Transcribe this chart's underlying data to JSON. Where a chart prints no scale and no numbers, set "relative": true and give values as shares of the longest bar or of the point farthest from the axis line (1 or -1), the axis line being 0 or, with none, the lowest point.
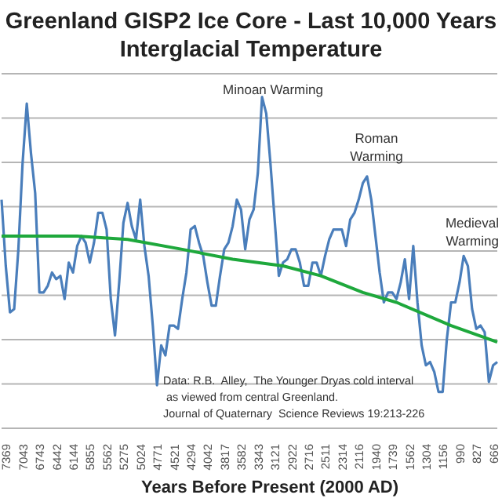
{
  "chart_data": {
    "type": "line",
    "title": "Greenland GISP2 Ice Core - Last 10,000 Years\nInterglacial Temperature",
    "xlabel": "Years Before Present (2000 AD)",
    "relative": true,
    "grid": "y",
    "annotations": [
      "Minoan Warming",
      "Roman\nWarming",
      "Medieval\nWarming",
      "Data: R.B.  Alley,  The Younger Dryas cold interval\n as viewed from central Greenland.\nJournal of Quaternary  Science Reviews 19:213-226"
    ],
    "categories": [
      null,
      "7369",
      null,
      null,
      null,
      "7043",
      null,
      null,
      null,
      "6743",
      null,
      null,
      null,
      "6442",
      null,
      null,
      null,
      "6144",
      null,
      null,
      null,
      "5855",
      null,
      null,
      null,
      "5562",
      null,
      null,
      null,
      "5275",
      null,
      null,
      null,
      "5024",
      null,
      null,
      null,
      "4771",
      null,
      null,
      null,
      "4521",
      null,
      null,
      null,
      "4294",
      null,
      null,
      null,
      "4042",
      null,
      null,
      null,
      "3817",
      null,
      null,
      null,
      "3582",
      null,
      null,
      null,
      "3343",
      null,
      null,
      null,
      "3121",
      null,
      null,
      null,
      "2922",
      null,
      null,
      null,
      "2716",
      null,
      null,
      null,
      "2511",
      null,
      null,
      null,
      "2314",
      null,
      null,
      null,
      "2116",
      null,
      null,
      null,
      "1940",
      null,
      null,
      null,
      "1739",
      null,
      null,
      null,
      "1562",
      null,
      null,
      null,
      "1304",
      null,
      null,
      null,
      "1156",
      null,
      null,
      null,
      "990",
      null,
      null,
      null,
      "827",
      null,
      null,
      null,
      "666",
      null
    ],
    "series": [
      {
        "color": "#4a7ebb",
        "values": [
          0.69,
          0.49,
          0.35,
          0.36,
          0.54,
          0.8,
          0.98,
          0.83,
          0.71,
          0.41,
          0.41,
          0.43,
          0.47,
          0.45,
          0.46,
          0.39,
          0.5,
          0.47,
          0.55,
          0.58,
          0.56,
          0.5,
          0.56,
          0.65,
          0.65,
          0.6,
          0.39,
          0.28,
          0.44,
          0.62,
          0.68,
          0.61,
          0.57,
          0.69,
          0.55,
          0.46,
          0.31,
          0.13,
          0.25,
          0.22,
          0.31,
          0.31,
          0.3,
          0.39,
          0.47,
          0.6,
          0.61,
          0.56,
          0.52,
          0.44,
          0.37,
          0.37,
          0.46,
          0.54,
          0.56,
          0.61,
          0.69,
          0.66,
          0.54,
          0.63,
          0.66,
          0.77,
          1.0,
          0.95,
          0.8,
          0.63,
          0.46,
          0.5,
          0.51,
          0.54,
          0.54,
          0.5,
          0.43,
          0.43,
          0.5,
          0.5,
          0.46,
          0.52,
          0.57,
          0.6,
          0.6,
          0.6,
          0.55,
          0.63,
          0.65,
          0.69,
          0.74,
          0.76,
          0.69,
          0.58,
          0.47,
          0.38,
          0.41,
          0.41,
          0.39,
          0.44,
          0.51,
          0.39,
          0.55,
          0.38,
          0.25,
          0.19,
          0.2,
          0.17,
          0.11,
          0.11,
          0.27,
          0.38,
          0.38,
          0.44,
          0.52,
          0.49,
          0.36,
          0.3,
          0.31,
          0.29,
          0.14,
          0.19,
          0.2
        ]
      },
      {
        "color": "#1ea83c",
        "values": [
          0.58,
          null,
          null,
          null,
          null,
          null,
          null,
          null,
          null,
          null,
          null,
          null,
          null,
          null,
          null,
          null,
          null,
          null,
          0.58,
          null,
          null,
          null,
          null,
          null,
          null,
          null,
          null,
          null,
          null,
          null,
          0.57,
          null,
          null,
          null,
          null,
          null,
          null,
          null,
          null,
          null,
          null,
          null,
          null,
          0.54,
          null,
          null,
          null,
          null,
          null,
          null,
          null,
          null,
          null,
          null,
          null,
          0.51,
          null,
          null,
          null,
          null,
          null,
          null,
          null,
          null,
          null,
          null,
          null,
          0.49,
          null,
          null,
          null,
          null,
          null,
          null,
          null,
          null,
          0.46,
          null,
          null,
          null,
          null,
          null,
          null,
          null,
          null,
          null,
          0.41,
          null,
          null,
          null,
          null,
          null,
          null,
          null,
          0.38,
          null,
          null,
          null,
          null,
          null,
          null,
          null,
          null,
          null,
          null,
          null,
          null,
          0.31,
          null,
          null,
          null,
          null,
          null,
          null,
          null,
          null,
          null,
          null,
          0.26
        ]
      }
    ]
  }
}
